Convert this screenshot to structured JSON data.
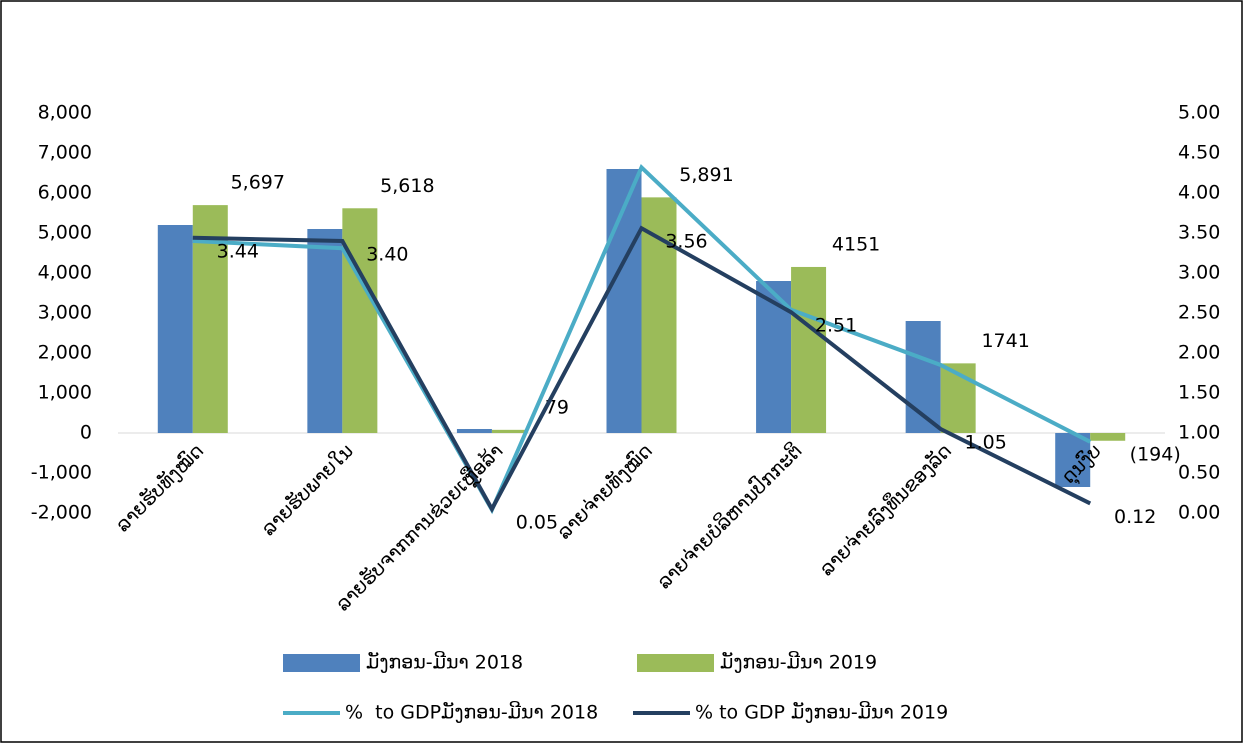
{
  "chart_data": {
    "type": "bar",
    "categories": [
      "ລາຍຮັບທັງໝົດ",
      "ລາຍຮັບພາຍໃນ",
      "ລາຍຮັບຈາກການຊ່ວຍເຫຼືອລ້າ",
      "ລາຍຈ່າຍທັງໝົດ",
      "ລາຍຈ່າຍບໍລິຫານປົກກະຕິ",
      "ລາຍຈ່າຍລົງທຶນຂອງລັດ",
      "ດຸນງົບ"
    ],
    "series": [
      {
        "name": "ມັງກອນ-ມີນາ 2018",
        "type": "bar",
        "color": "#4f81bd",
        "values": [
          5200,
          5100,
          100,
          6600,
          3800,
          2800,
          -1350
        ]
      },
      {
        "name": "ມັງກອນ-ມີນາ 2019",
        "type": "bar",
        "color": "#9bbb59",
        "values": [
          5697,
          5618,
          79,
          5891,
          4151,
          1741,
          -194
        ],
        "value_labels": [
          "5,697",
          "5,618",
          "79",
          "5,891",
          "4151",
          "1741",
          "(194)"
        ]
      },
      {
        "name": "%  to GDPມັງກອນ-ມີນາ 2018",
        "type": "line",
        "axis": "y2",
        "color": "#4bacc6",
        "values": [
          3.4,
          3.31,
          0.04,
          4.32,
          2.54,
          1.85,
          0.89
        ]
      },
      {
        "name": "% to GDP ມັງກອນ-ມີນາ 2019",
        "type": "line",
        "axis": "y2",
        "color": "#243f60",
        "values": [
          3.44,
          3.4,
          0.05,
          3.56,
          2.51,
          1.05,
          0.12
        ],
        "value_labels": [
          "3.44",
          "3.40",
          "0.05",
          "3.56",
          "2.51",
          "1.05",
          "0.12"
        ]
      }
    ],
    "ylim": [
      -2000,
      8000
    ],
    "yticks": [
      {
        "value": -2000,
        "label": "-2,000"
      },
      {
        "value": -1000,
        "label": "-1,000"
      },
      0,
      {
        "value": 1000,
        "label": "1,000"
      },
      {
        "value": 2000,
        "label": "2,000"
      },
      {
        "value": 3000,
        "label": "3,000"
      },
      {
        "value": 4000,
        "label": "4,000"
      },
      {
        "value": 5000,
        "label": "5,000"
      },
      {
        "value": 6000,
        "label": "6,000"
      },
      {
        "value": 7000,
        "label": "7,000"
      },
      {
        "value": 8000,
        "label": "8,000"
      }
    ],
    "y2lim": [
      0,
      5
    ],
    "y2ticks": [
      {
        "value": 0,
        "label": "0.00"
      },
      {
        "value": 0.5,
        "label": "0.50"
      },
      {
        "value": 1,
        "label": "1.00"
      },
      {
        "value": 1.5,
        "label": "1.50"
      },
      {
        "value": 2,
        "label": "2.00"
      },
      {
        "value": 2.5,
        "label": "2.50"
      },
      {
        "value": 3,
        "label": "3.00"
      },
      {
        "value": 3.5,
        "label": "3.50"
      },
      {
        "value": 4,
        "label": "4.00"
      },
      {
        "value": 4.5,
        "label": "4.50"
      },
      {
        "value": 5,
        "label": "5.00"
      }
    ],
    "grid": false,
    "legend": "bottom"
  }
}
